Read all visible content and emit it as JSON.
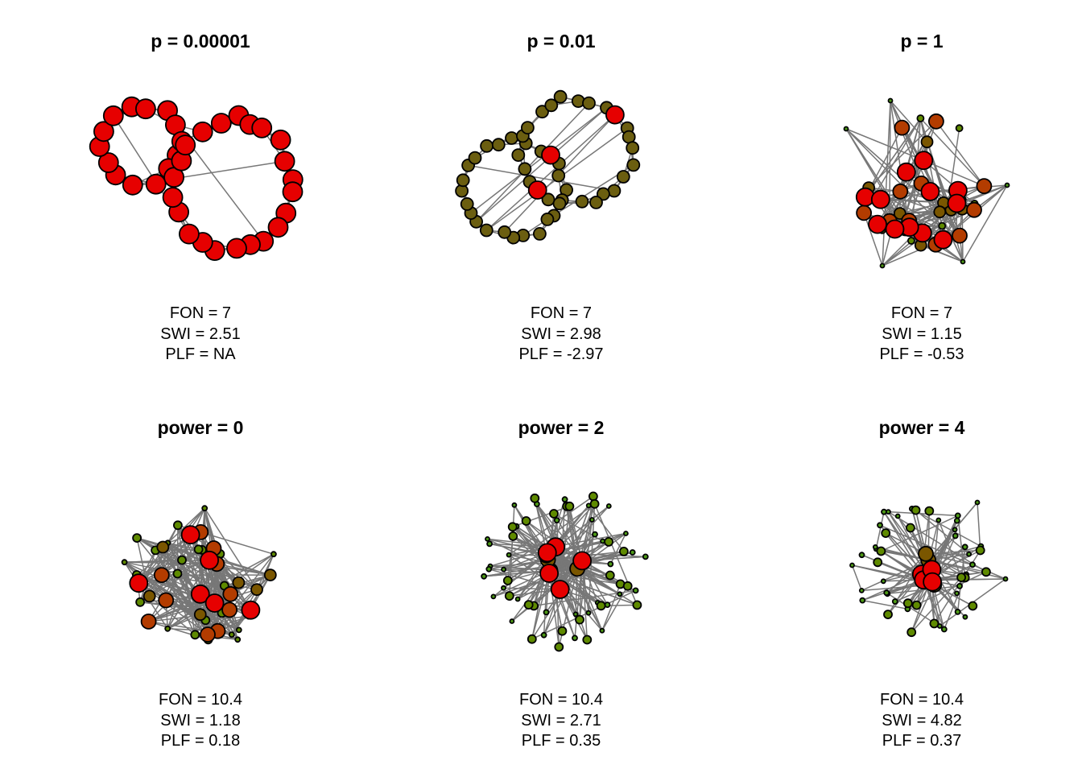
{
  "colors": {
    "edge": "#777777",
    "node_outline": "#000000",
    "hub": "#e60000",
    "high": "#b33c00",
    "mid": "#7a5600",
    "olive": "#6b5e10",
    "low": "#5f8a00",
    "leaf": "#4d9a16"
  },
  "panels": [
    {
      "title": "p = 0.00001",
      "fon": "FON = 7",
      "swi": "SWI = 2.51",
      "plf": "PLF = NA"
    },
    {
      "title": "p = 0.01",
      "fon": "FON = 7",
      "swi": "SWI = 2.98",
      "plf": "PLF = -2.97"
    },
    {
      "title": "p = 1",
      "fon": "FON = 7",
      "swi": "SWI = 1.15",
      "plf": "PLF = -0.53"
    },
    {
      "title": "power = 0",
      "fon": "FON = 10.4",
      "swi": "SWI = 1.18",
      "plf": "PLF = 0.18"
    },
    {
      "title": "power = 2",
      "fon": "FON = 10.4",
      "swi": "SWI = 2.71",
      "plf": "PLF = 0.35"
    },
    {
      "title": "power = 4",
      "fon": "FON = 10.4",
      "swi": "SWI = 4.82",
      "plf": "PLF = 0.37"
    }
  ]
}
